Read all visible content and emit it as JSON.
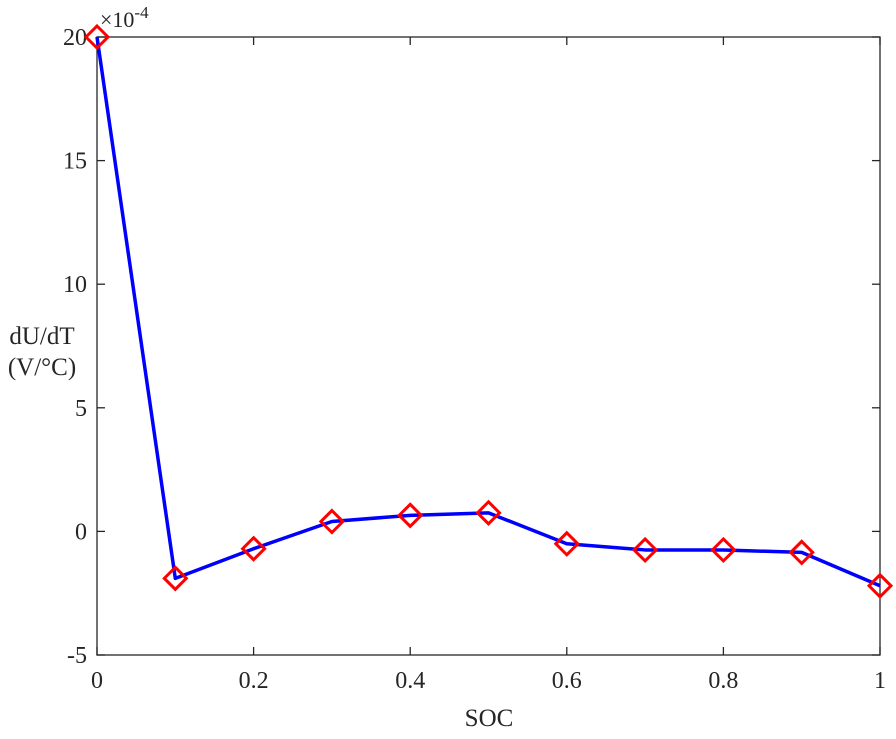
{
  "chart_data": {
    "type": "line",
    "title": "",
    "xlabel": "SOC",
    "ylabel": [
      "dU/dT",
      "(V/°C)"
    ],
    "exponent_label": {
      "base": "×10",
      "power": "-4"
    },
    "xlim": [
      0,
      1
    ],
    "ylim": [
      -5,
      20
    ],
    "x_ticks": [
      0,
      0.2,
      0.4,
      0.6,
      0.8,
      1
    ],
    "x_tick_labels": [
      "0",
      "0.2",
      "0.4",
      "0.6",
      "0.8",
      "1"
    ],
    "y_ticks": [
      -5,
      0,
      5,
      10,
      15,
      20
    ],
    "y_tick_labels": [
      "-5",
      "0",
      "5",
      "10",
      "15",
      "20"
    ],
    "grid": false,
    "legend": "none",
    "series": [
      {
        "x": [
          0,
          0.1,
          0.2,
          0.3,
          0.4,
          0.5,
          0.6,
          0.7,
          0.8,
          0.9,
          1.0
        ],
        "y": [
          20,
          -1.9,
          -0.7,
          0.4,
          0.65,
          0.75,
          -0.5,
          -0.75,
          -0.75,
          -0.85,
          -2.2
        ],
        "line_color": "#0000ff",
        "marker": "diamond",
        "marker_color": "#ff0000"
      }
    ]
  }
}
